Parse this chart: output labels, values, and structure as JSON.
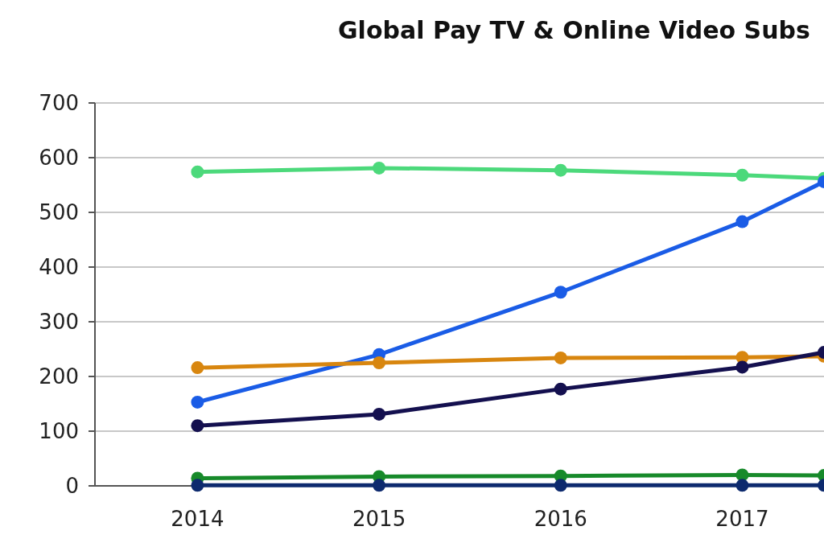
{
  "chart_data": {
    "type": "line",
    "title": "Global Pay TV & Online Video Subs",
    "x": [
      2014,
      2015,
      2016,
      2017,
      2017.45
    ],
    "series": [
      {
        "color": "#4cd97b",
        "values": [
          574,
          581,
          577,
          568,
          562
        ]
      },
      {
        "color": "#1a5ce6",
        "values": [
          153,
          240,
          354,
          483,
          556
        ]
      },
      {
        "color": "#d8860f",
        "values": [
          216,
          225,
          234,
          235,
          237
        ]
      },
      {
        "color": "#14104f",
        "values": [
          110,
          131,
          177,
          217,
          244
        ]
      },
      {
        "color": "#178a2a",
        "values": [
          14,
          17,
          18,
          20,
          19
        ]
      },
      {
        "color": "#0d2a6e",
        "values": [
          1,
          1,
          1,
          1,
          1
        ]
      }
    ],
    "xlim": [
      2013.4,
      2017.45
    ],
    "xticks": [
      2014,
      2015,
      2016,
      2017
    ],
    "ylim": [
      0,
      700
    ],
    "yticks": [
      0,
      100,
      200,
      300,
      400,
      500,
      600,
      700
    ],
    "grid": "y",
    "marker": "circle"
  }
}
